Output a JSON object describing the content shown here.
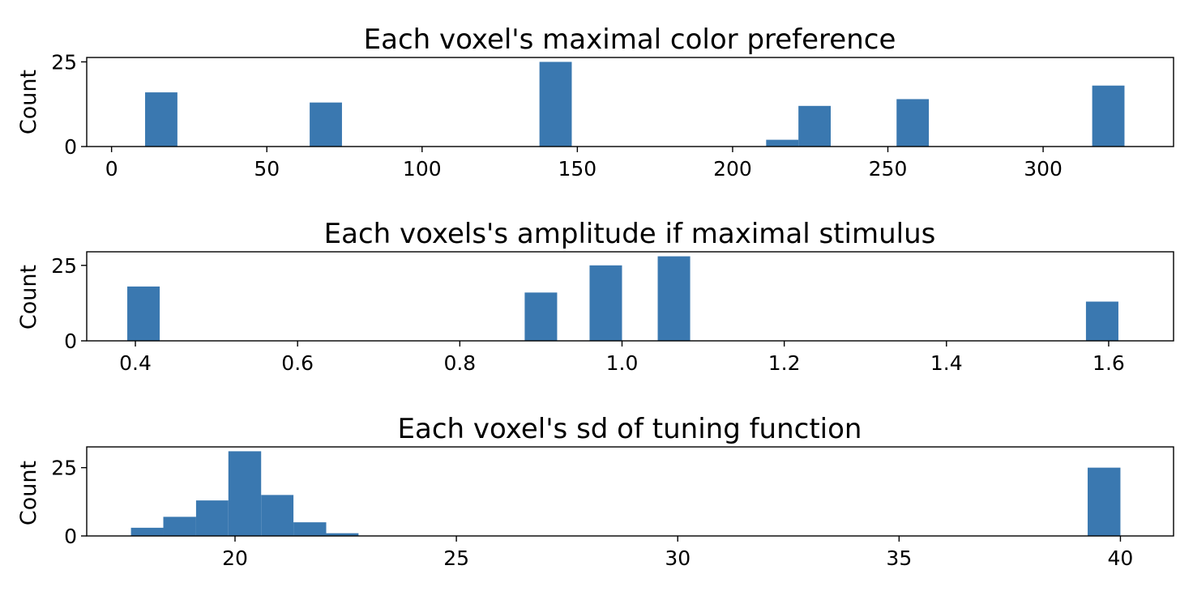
{
  "chart_data": [
    {
      "type": "bar",
      "title": "Each voxel's maximal color preference",
      "xlabel": "",
      "ylabel": "Count",
      "xlim": [
        -8,
        342
      ],
      "ylim": [
        0,
        26.3
      ],
      "xticks": [
        0,
        50,
        100,
        150,
        200,
        250,
        300
      ],
      "xtick_labels": [
        "0",
        "50",
        "100",
        "150",
        "200",
        "250",
        "300"
      ],
      "yticks": [
        0,
        25
      ],
      "ytick_labels": [
        "0",
        "25"
      ],
      "grid": false,
      "color": "#3a78b0",
      "bins": [
        {
          "x0": 10.8,
          "x1": 21.2,
          "count": 16
        },
        {
          "x0": 63.8,
          "x1": 74.2,
          "count": 13
        },
        {
          "x0": 137.8,
          "x1": 148.2,
          "count": 25
        },
        {
          "x0": 210.8,
          "x1": 221.2,
          "count": 2
        },
        {
          "x0": 221.2,
          "x1": 231.6,
          "count": 12
        },
        {
          "x0": 252.8,
          "x1": 263.2,
          "count": 14
        },
        {
          "x0": 315.8,
          "x1": 326.2,
          "count": 18
        }
      ]
    },
    {
      "type": "bar",
      "title": "Each voxels's amplitude if maximal stimulus",
      "xlabel": "",
      "ylabel": "Count",
      "xlim": [
        0.34,
        1.68
      ],
      "ylim": [
        0,
        29.5
      ],
      "xticks": [
        0.4,
        0.6,
        0.8,
        1.0,
        1.2,
        1.4,
        1.6
      ],
      "xtick_labels": [
        "0.4",
        "0.6",
        "0.8",
        "1.0",
        "1.2",
        "1.4",
        "1.6"
      ],
      "yticks": [
        0,
        25
      ],
      "ytick_labels": [
        "0",
        "25"
      ],
      "grid": false,
      "color": "#3a78b0",
      "bins": [
        {
          "x0": 0.39,
          "x1": 0.43,
          "count": 18
        },
        {
          "x0": 0.88,
          "x1": 0.92,
          "count": 16
        },
        {
          "x0": 0.96,
          "x1": 1.0,
          "count": 25
        },
        {
          "x0": 1.044,
          "x1": 1.084,
          "count": 28
        },
        {
          "x0": 1.572,
          "x1": 1.612,
          "count": 13
        }
      ]
    },
    {
      "type": "bar",
      "title": "Each voxel's sd of tuning function",
      "xlabel": "",
      "ylabel": "Count",
      "xlim": [
        16.65,
        41.2
      ],
      "ylim": [
        0,
        32.6
      ],
      "xticks": [
        20,
        25,
        30,
        35,
        40
      ],
      "xtick_labels": [
        "20",
        "25",
        "30",
        "35",
        "40"
      ],
      "yticks": [
        0,
        25
      ],
      "ytick_labels": [
        "0",
        "25"
      ],
      "grid": false,
      "color": "#3a78b0",
      "bins": [
        {
          "x0": 17.65,
          "x1": 18.38,
          "count": 3
        },
        {
          "x0": 18.38,
          "x1": 19.12,
          "count": 7
        },
        {
          "x0": 19.12,
          "x1": 19.85,
          "count": 13
        },
        {
          "x0": 19.85,
          "x1": 20.59,
          "count": 31
        },
        {
          "x0": 20.59,
          "x1": 21.32,
          "count": 15
        },
        {
          "x0": 21.32,
          "x1": 22.06,
          "count": 5
        },
        {
          "x0": 22.06,
          "x1": 22.79,
          "count": 1
        },
        {
          "x0": 39.26,
          "x1": 40.0,
          "count": 25
        }
      ]
    }
  ]
}
